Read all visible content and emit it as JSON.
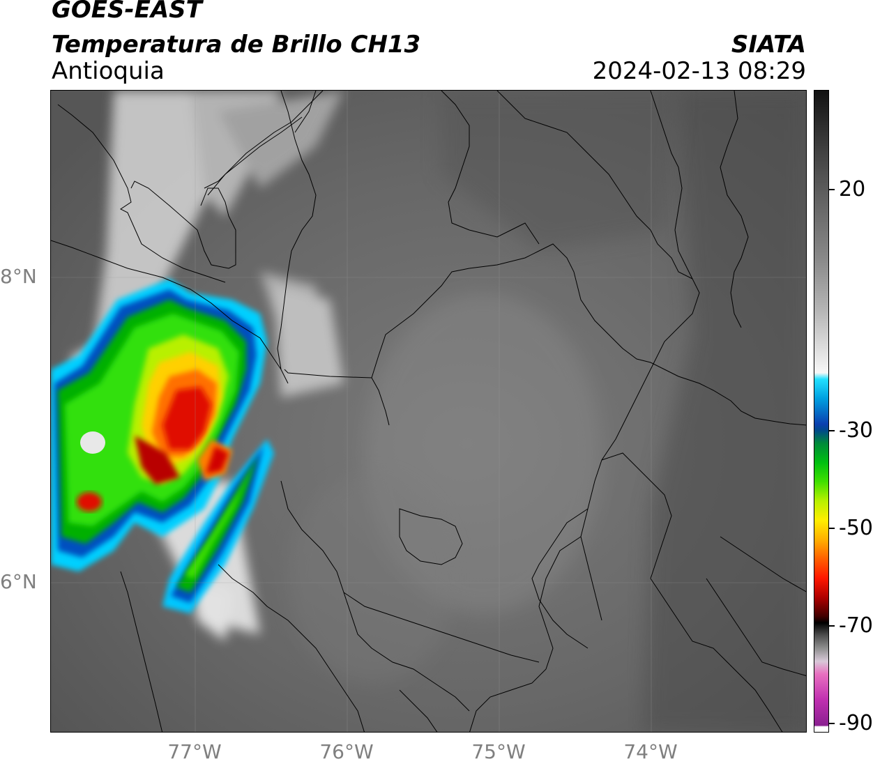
{
  "header": {
    "satellite": "GOES-EAST",
    "product": "Temperatura de Brillo CH13",
    "region": "Antioquia",
    "organization": "SIATA",
    "timestamp": "2024-02-13 08:29"
  },
  "map": {
    "lat_labels": [
      "8°N",
      "6°N"
    ],
    "lon_labels": [
      "77°W",
      "76°W",
      "75°W",
      "74°W"
    ],
    "colorbar": {
      "labels": [
        "20",
        "-30",
        "-50",
        "-70",
        "-90"
      ],
      "units_scale": "brightness temperature"
    },
    "colors": {
      "background_gray": "#6e6e6e",
      "cloud_white": "#e8e8e8",
      "cold_red": "#d00000",
      "cold_yellow": "#ffe000",
      "cold_green": "#20d000",
      "cold_blue": "#0050c0",
      "cold_cyan": "#00c8ff"
    }
  }
}
